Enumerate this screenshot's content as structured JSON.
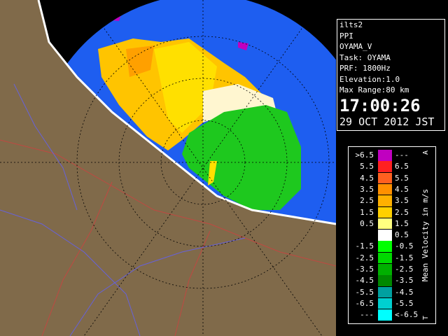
{
  "info": {
    "lines": [
      "ilts2",
      "PPI",
      "OYAMA_V",
      "Task: OYAMA",
      "PRF: 1800Hz",
      "Elevation:1.0",
      "Max Range:80 km"
    ],
    "time": "17:00:26",
    "date": "29 OCT 2012 JST"
  },
  "legend": {
    "title": "Mean Velocity in m/s",
    "top_letter": "A",
    "bottom_letter": "T",
    "rows": [
      {
        "left": ">6.5",
        "right": "---",
        "color": "#c000c0"
      },
      {
        "left": "5.5",
        "right": "6.5",
        "color": "#ff2020"
      },
      {
        "left": "4.5",
        "right": "5.5",
        "color": "#ff6020"
      },
      {
        "left": "3.5",
        "right": "4.5",
        "color": "#ff9000"
      },
      {
        "left": "2.5",
        "right": "3.5",
        "color": "#ffb000"
      },
      {
        "left": "1.5",
        "right": "2.5",
        "color": "#ffd000"
      },
      {
        "left": "0.5",
        "right": "1.5",
        "color": "#ffff80"
      },
      {
        "left": null,
        "right": "0.5",
        "color": "#ffffff"
      },
      {
        "left": "-1.5",
        "right": "-0.5",
        "color": "#00ff00"
      },
      {
        "left": "-2.5",
        "right": "-1.5",
        "color": "#00d800"
      },
      {
        "left": "-3.5",
        "right": "-2.5",
        "color": "#00b000"
      },
      {
        "left": "-4.5",
        "right": "-3.5",
        "color": "#008800"
      },
      {
        "left": "-5.5",
        "right": "-4.5",
        "color": "#00a0a0"
      },
      {
        "left": "-6.5",
        "right": "-5.5",
        "color": "#00d0d0"
      },
      {
        "left": "---",
        "right": "<-6.5",
        "color": "#00ffff"
      }
    ]
  }
}
